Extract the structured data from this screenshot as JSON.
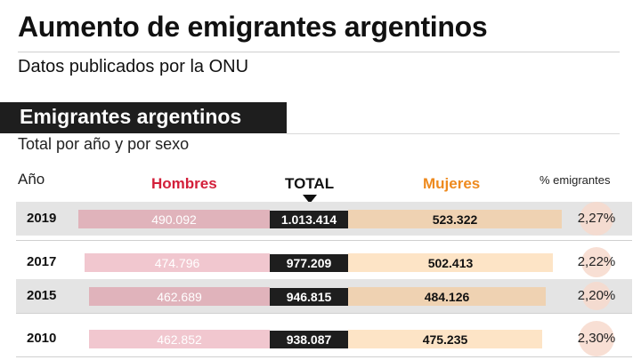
{
  "header": {
    "title": "Aumento de emigrantes argentinos",
    "subtitle": "Datos publicados por la ONU"
  },
  "section": {
    "title": "Emigrantes argentinos",
    "subtitle": "Total por año y por sexo"
  },
  "columns": {
    "year": "Año",
    "men": "Hombres",
    "total": "TOTAL",
    "women": "Mujeres",
    "pct": "% emigrantes"
  },
  "colors": {
    "men": "#d31f3a",
    "women": "#ee8a1e",
    "total": "#1e1e1e"
  },
  "chart_data": {
    "type": "bar",
    "categories": [
      "2019",
      "2017",
      "2015",
      "2010"
    ],
    "series": [
      {
        "name": "Hombres",
        "values": [
          490092,
          474796,
          462689,
          462852
        ],
        "labels": [
          "490.092",
          "474.796",
          "462.689",
          "462.852"
        ]
      },
      {
        "name": "Mujeres",
        "values": [
          523322,
          502413,
          484126,
          475235
        ],
        "labels": [
          "523.322",
          "502.413",
          "484.126",
          "475.235"
        ]
      },
      {
        "name": "TOTAL",
        "values": [
          1013414,
          977209,
          946815,
          938087
        ],
        "labels": [
          "1.013.414",
          "977.209",
          "946.815",
          "938.087"
        ]
      },
      {
        "name": "% emigrantes",
        "values": [
          2.27,
          2.22,
          2.2,
          2.3
        ],
        "labels": [
          "2,27%",
          "2,22%",
          "2,20%",
          "2,30%"
        ]
      }
    ]
  }
}
